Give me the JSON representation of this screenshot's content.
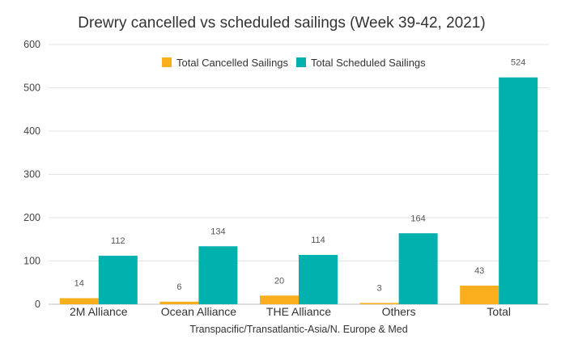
{
  "chart_data": {
    "type": "bar",
    "title": "Drewry cancelled vs scheduled sailings (Week 39-42, 2021)",
    "xlabel": "Transpacific/Transatlantic-Asia/N. Europe & Med",
    "ylabel": "",
    "categories": [
      "2M Alliance",
      "Ocean Alliance",
      "THE Alliance",
      "Others",
      "Total"
    ],
    "series": [
      {
        "name": "Total Cancelled Sailings",
        "values": [
          14,
          6,
          20,
          3,
          43
        ],
        "color": "#F9AE1D"
      },
      {
        "name": "Total Scheduled Sailings",
        "values": [
          112,
          134,
          114,
          164,
          524
        ],
        "color": "#00B1AE"
      }
    ],
    "ylim": [
      0,
      600
    ],
    "yticks": [
      0,
      100,
      200,
      300,
      400,
      500,
      600
    ],
    "grid": true,
    "legend_position": "top"
  }
}
